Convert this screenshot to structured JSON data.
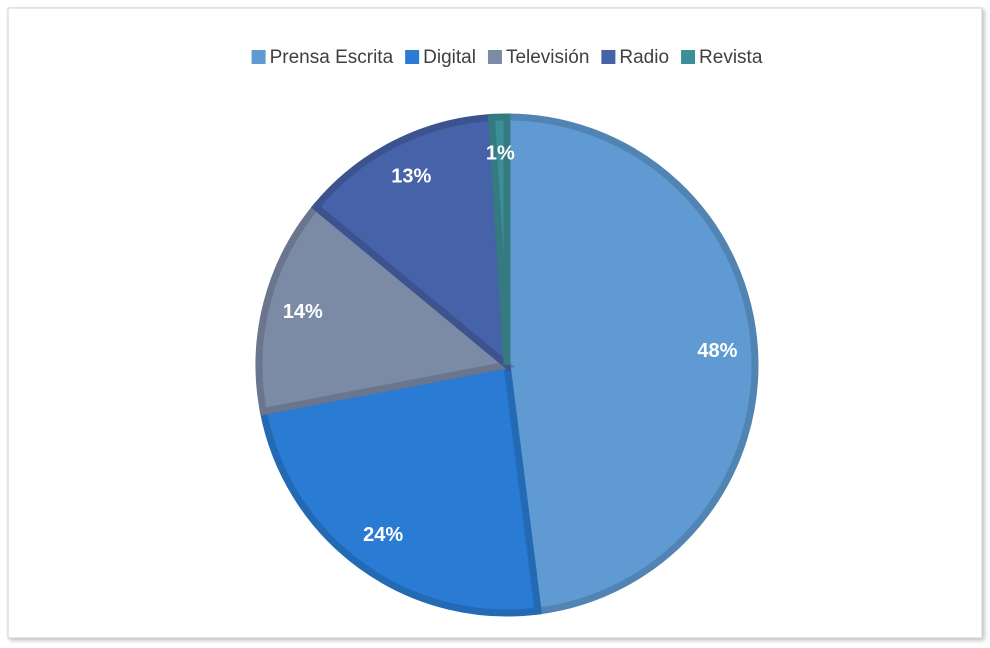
{
  "chart_data": {
    "type": "pie",
    "categories": [
      "Prensa Escrita",
      "Digital",
      "Televisión",
      "Radio",
      "Revista"
    ],
    "values": [
      48,
      24,
      14,
      13,
      1
    ],
    "value_labels": [
      "48%",
      "24%",
      "14%",
      "13%",
      "1%"
    ],
    "colors": [
      "#5f9bd2",
      "#2a7bd4",
      "#7b8ba6",
      "#4662a8",
      "#3d8f97"
    ],
    "legend": "top"
  }
}
